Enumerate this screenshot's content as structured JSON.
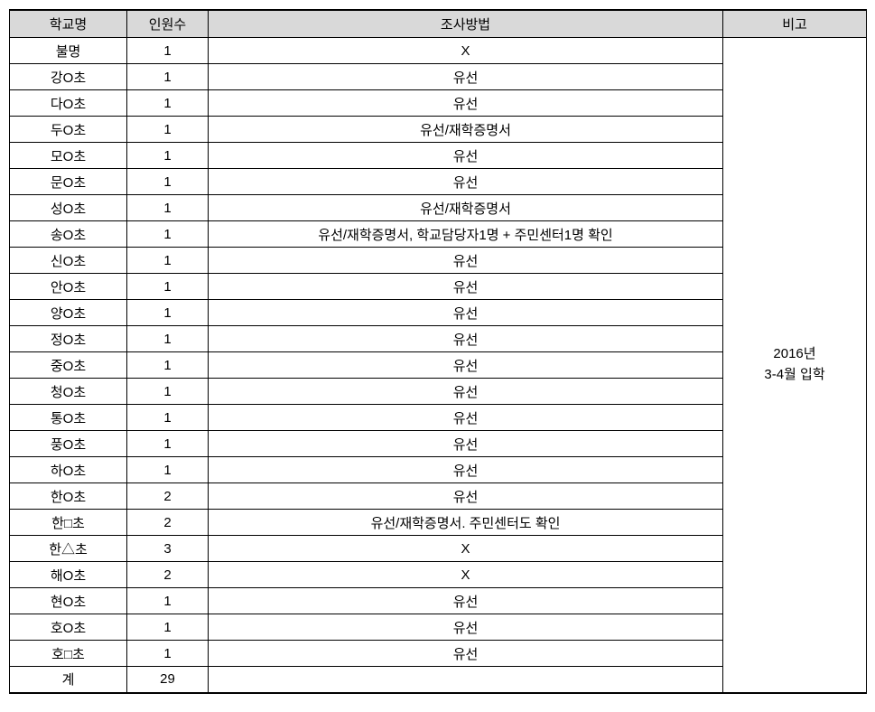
{
  "table": {
    "headers": {
      "school": "학교명",
      "count": "인원수",
      "method": "조사방법",
      "note": "비고"
    },
    "rows": [
      {
        "school": "불명",
        "count": "1",
        "method": "X"
      },
      {
        "school": "강O초",
        "count": "1",
        "method": "유선"
      },
      {
        "school": "다O초",
        "count": "1",
        "method": "유선"
      },
      {
        "school": "두O초",
        "count": "1",
        "method": "유선/재학증명서"
      },
      {
        "school": "모O초",
        "count": "1",
        "method": "유선"
      },
      {
        "school": "문O초",
        "count": "1",
        "method": "유선"
      },
      {
        "school": "성O초",
        "count": "1",
        "method": "유선/재학증명서"
      },
      {
        "school": "송O초",
        "count": "1",
        "method": "유선/재학증명서, 학교담당자1명 + 주민센터1명 확인"
      },
      {
        "school": "신O초",
        "count": "1",
        "method": "유선"
      },
      {
        "school": "안O초",
        "count": "1",
        "method": "유선"
      },
      {
        "school": "양O초",
        "count": "1",
        "method": "유선"
      },
      {
        "school": "정O초",
        "count": "1",
        "method": "유선"
      },
      {
        "school": "중O초",
        "count": "1",
        "method": "유선"
      },
      {
        "school": "청O초",
        "count": "1",
        "method": "유선"
      },
      {
        "school": "통O초",
        "count": "1",
        "method": "유선"
      },
      {
        "school": "풍O초",
        "count": "1",
        "method": "유선"
      },
      {
        "school": "하O초",
        "count": "1",
        "method": "유선"
      },
      {
        "school": "한O초",
        "count": "2",
        "method": "유선"
      },
      {
        "school": "한□초",
        "count": "2",
        "method": "유선/재학증명서. 주민센터도 확인"
      },
      {
        "school": "한△초",
        "count": "3",
        "method": "X"
      },
      {
        "school": "해O초",
        "count": "2",
        "method": "X"
      },
      {
        "school": "현O초",
        "count": "1",
        "method": "유선"
      },
      {
        "school": "호O초",
        "count": "1",
        "method": "유선"
      },
      {
        "school": "호□초",
        "count": "1",
        "method": "유선"
      }
    ],
    "total": {
      "label": "계",
      "count": "29",
      "method": ""
    },
    "note_line1": "2016년",
    "note_line2": "3-4월 입학",
    "styling": {
      "header_bg": "#d9d9d9",
      "border_color": "#000000",
      "font_size": 15,
      "col_widths": {
        "school": 130,
        "count": 90,
        "method": 570,
        "note": 159
      }
    }
  }
}
